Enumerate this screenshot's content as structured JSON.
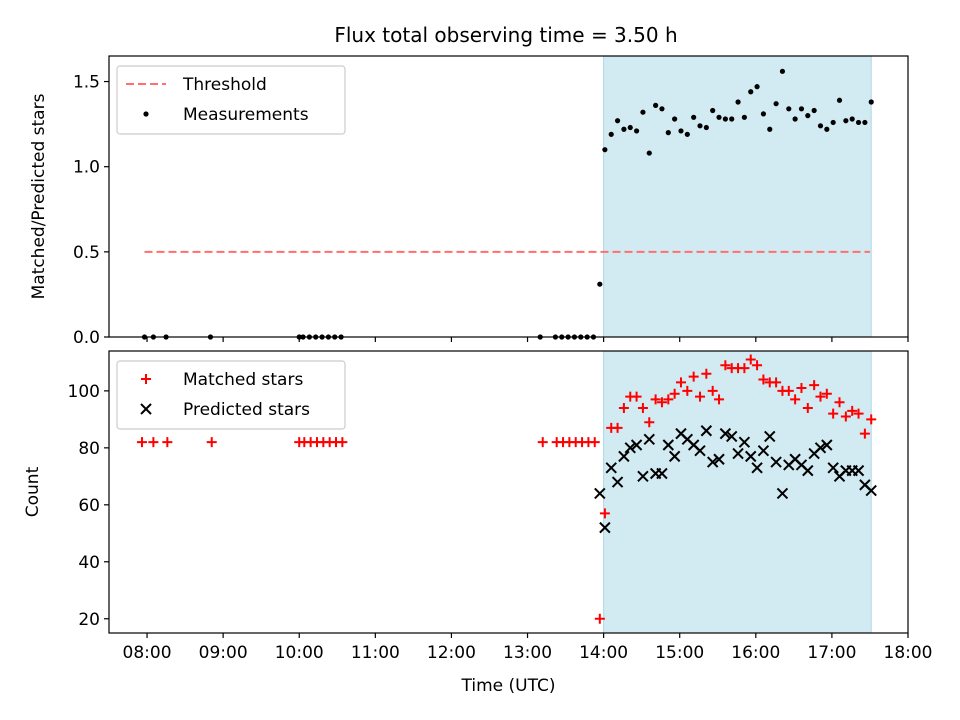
{
  "title": "Flux total observing time = 3.50 h",
  "colors": {
    "threshold": "#ff6f6f",
    "measurements": "#000000",
    "matched": "#ff0000",
    "predicted": "#000000",
    "span_fill": "#add8e6"
  },
  "chart_data": [
    {
      "type": "scatter",
      "ylabel": "Matched/Predicted stars",
      "xlim": [
        "07:30",
        "18:00"
      ],
      "ylim": [
        0,
        1.65
      ],
      "yticks": [
        0.0,
        0.5,
        1.0,
        1.5
      ],
      "ytick_labels": [
        "0.0",
        "0.5",
        "1.0",
        "1.5"
      ],
      "observing_span": [
        "14:00",
        "17:31"
      ],
      "legend_position": "upper-left",
      "threshold": {
        "name": "Threshold",
        "y": 0.5,
        "x": [
          "07:58",
          "17:30"
        ],
        "style": "dashed"
      },
      "series": [
        {
          "name": "Measurements",
          "marker": "dot",
          "points": [
            [
              "07:58",
              0.0
            ],
            [
              "08:05",
              0.0
            ],
            [
              "08:15",
              0.0
            ],
            [
              "08:50",
              0.0
            ],
            [
              "10:00",
              0.0
            ],
            [
              "10:03",
              0.0
            ],
            [
              "10:08",
              0.0
            ],
            [
              "10:13",
              0.0
            ],
            [
              "10:18",
              0.0
            ],
            [
              "10:23",
              0.0
            ],
            [
              "10:28",
              0.0
            ],
            [
              "10:33",
              0.0
            ],
            [
              "13:10",
              0.0
            ],
            [
              "13:22",
              0.0
            ],
            [
              "13:27",
              0.0
            ],
            [
              "13:32",
              0.0
            ],
            [
              "13:37",
              0.0
            ],
            [
              "13:42",
              0.0
            ],
            [
              "13:47",
              0.0
            ],
            [
              "13:52",
              0.0
            ],
            [
              "13:57",
              0.31
            ],
            [
              "14:01",
              1.1
            ],
            [
              "14:06",
              1.19
            ],
            [
              "14:11",
              1.27
            ],
            [
              "14:16",
              1.22
            ],
            [
              "14:21",
              1.23
            ],
            [
              "14:26",
              1.21
            ],
            [
              "14:31",
              1.32
            ],
            [
              "14:36",
              1.08
            ],
            [
              "14:41",
              1.36
            ],
            [
              "14:46",
              1.34
            ],
            [
              "14:51",
              1.2
            ],
            [
              "14:56",
              1.28
            ],
            [
              "15:01",
              1.21
            ],
            [
              "15:06",
              1.19
            ],
            [
              "15:11",
              1.29
            ],
            [
              "15:16",
              1.24
            ],
            [
              "15:21",
              1.23
            ],
            [
              "15:26",
              1.33
            ],
            [
              "15:31",
              1.29
            ],
            [
              "15:36",
              1.28
            ],
            [
              "15:41",
              1.28
            ],
            [
              "15:46",
              1.38
            ],
            [
              "15:51",
              1.29
            ],
            [
              "15:56",
              1.44
            ],
            [
              "16:01",
              1.47
            ],
            [
              "16:06",
              1.31
            ],
            [
              "16:11",
              1.22
            ],
            [
              "16:16",
              1.37
            ],
            [
              "16:21",
              1.56
            ],
            [
              "16:26",
              1.34
            ],
            [
              "16:31",
              1.28
            ],
            [
              "16:36",
              1.34
            ],
            [
              "16:41",
              1.3
            ],
            [
              "16:46",
              1.33
            ],
            [
              "16:51",
              1.24
            ],
            [
              "16:56",
              1.22
            ],
            [
              "17:01",
              1.26
            ],
            [
              "17:06",
              1.39
            ],
            [
              "17:11",
              1.27
            ],
            [
              "17:16",
              1.28
            ],
            [
              "17:21",
              1.26
            ],
            [
              "17:26",
              1.26
            ],
            [
              "17:31",
              1.38
            ]
          ]
        }
      ]
    },
    {
      "type": "scatter",
      "xlabel": "Time (UTC)",
      "ylabel": "Count",
      "xlim": [
        "07:30",
        "18:00"
      ],
      "ylim": [
        15,
        114
      ],
      "yticks": [
        20,
        40,
        60,
        80,
        100
      ],
      "ytick_labels": [
        "20",
        "40",
        "60",
        "80",
        "100"
      ],
      "xticks": [
        "08:00",
        "09:00",
        "10:00",
        "11:00",
        "12:00",
        "13:00",
        "14:00",
        "15:00",
        "16:00",
        "17:00",
        "18:00"
      ],
      "xtick_labels": [
        "08:00",
        "09:00",
        "10:00",
        "11:00",
        "12:00",
        "13:00",
        "14:00",
        "15:00",
        "16:00",
        "17:00",
        "18:00"
      ],
      "observing_span": [
        "14:00",
        "17:31"
      ],
      "legend_position": "upper-left",
      "series": [
        {
          "name": "Matched stars",
          "marker": "plus",
          "points": [
            [
              "07:56",
              82
            ],
            [
              "08:05",
              82
            ],
            [
              "08:16",
              82
            ],
            [
              "08:51",
              82
            ],
            [
              "10:00",
              82
            ],
            [
              "10:04",
              82
            ],
            [
              "10:09",
              82
            ],
            [
              "10:14",
              82
            ],
            [
              "10:19",
              82
            ],
            [
              "10:24",
              82
            ],
            [
              "10:29",
              82
            ],
            [
              "10:34",
              82
            ],
            [
              "13:12",
              82
            ],
            [
              "13:23",
              82
            ],
            [
              "13:28",
              82
            ],
            [
              "13:33",
              82
            ],
            [
              "13:38",
              82
            ],
            [
              "13:43",
              82
            ],
            [
              "13:48",
              82
            ],
            [
              "13:53",
              82
            ],
            [
              "13:57",
              20
            ],
            [
              "14:01",
              57
            ],
            [
              "14:06",
              87
            ],
            [
              "14:11",
              87
            ],
            [
              "14:16",
              94
            ],
            [
              "14:21",
              98
            ],
            [
              "14:26",
              98
            ],
            [
              "14:31",
              94
            ],
            [
              "14:36",
              89
            ],
            [
              "14:41",
              97
            ],
            [
              "14:46",
              96
            ],
            [
              "14:51",
              97
            ],
            [
              "14:56",
              99
            ],
            [
              "15:01",
              103
            ],
            [
              "15:06",
              100
            ],
            [
              "15:11",
              105
            ],
            [
              "15:16",
              98
            ],
            [
              "15:21",
              106
            ],
            [
              "15:26",
              100
            ],
            [
              "15:31",
              97
            ],
            [
              "15:36",
              109
            ],
            [
              "15:41",
              108
            ],
            [
              "15:46",
              108
            ],
            [
              "15:51",
              108
            ],
            [
              "15:56",
              111
            ],
            [
              "16:01",
              109
            ],
            [
              "16:06",
              104
            ],
            [
              "16:11",
              103
            ],
            [
              "16:16",
              103
            ],
            [
              "16:21",
              100
            ],
            [
              "16:26",
              100
            ],
            [
              "16:31",
              97
            ],
            [
              "16:36",
              101
            ],
            [
              "16:41",
              94
            ],
            [
              "16:46",
              102
            ],
            [
              "16:51",
              98
            ],
            [
              "16:56",
              99
            ],
            [
              "17:01",
              92
            ],
            [
              "17:06",
              96
            ],
            [
              "17:11",
              91
            ],
            [
              "17:16",
              93
            ],
            [
              "17:21",
              92
            ],
            [
              "17:26",
              85
            ],
            [
              "17:31",
              90
            ]
          ]
        },
        {
          "name": "Predicted stars",
          "marker": "x",
          "points": [
            [
              "13:57",
              64
            ],
            [
              "14:01",
              52
            ],
            [
              "14:06",
              73
            ],
            [
              "14:11",
              68
            ],
            [
              "14:16",
              77
            ],
            [
              "14:21",
              80
            ],
            [
              "14:26",
              81
            ],
            [
              "14:31",
              70
            ],
            [
              "14:36",
              83
            ],
            [
              "14:41",
              71
            ],
            [
              "14:46",
              71
            ],
            [
              "14:51",
              81
            ],
            [
              "14:56",
              77
            ],
            [
              "15:01",
              85
            ],
            [
              "15:06",
              83
            ],
            [
              "15:11",
              81
            ],
            [
              "15:16",
              79
            ],
            [
              "15:21",
              86
            ],
            [
              "15:26",
              75
            ],
            [
              "15:31",
              76
            ],
            [
              "15:36",
              85
            ],
            [
              "15:41",
              84
            ],
            [
              "15:46",
              78
            ],
            [
              "15:51",
              82
            ],
            [
              "15:56",
              77
            ],
            [
              "16:01",
              73
            ],
            [
              "16:06",
              79
            ],
            [
              "16:11",
              84
            ],
            [
              "16:16",
              75
            ],
            [
              "16:21",
              64
            ],
            [
              "16:26",
              74
            ],
            [
              "16:31",
              76
            ],
            [
              "16:36",
              74
            ],
            [
              "16:41",
              72
            ],
            [
              "16:46",
              78
            ],
            [
              "16:51",
              80
            ],
            [
              "16:56",
              81
            ],
            [
              "17:01",
              73
            ],
            [
              "17:06",
              70
            ],
            [
              "17:11",
              72
            ],
            [
              "17:16",
              72
            ],
            [
              "17:21",
              72
            ],
            [
              "17:26",
              67
            ],
            [
              "17:31",
              65
            ]
          ]
        }
      ]
    }
  ]
}
